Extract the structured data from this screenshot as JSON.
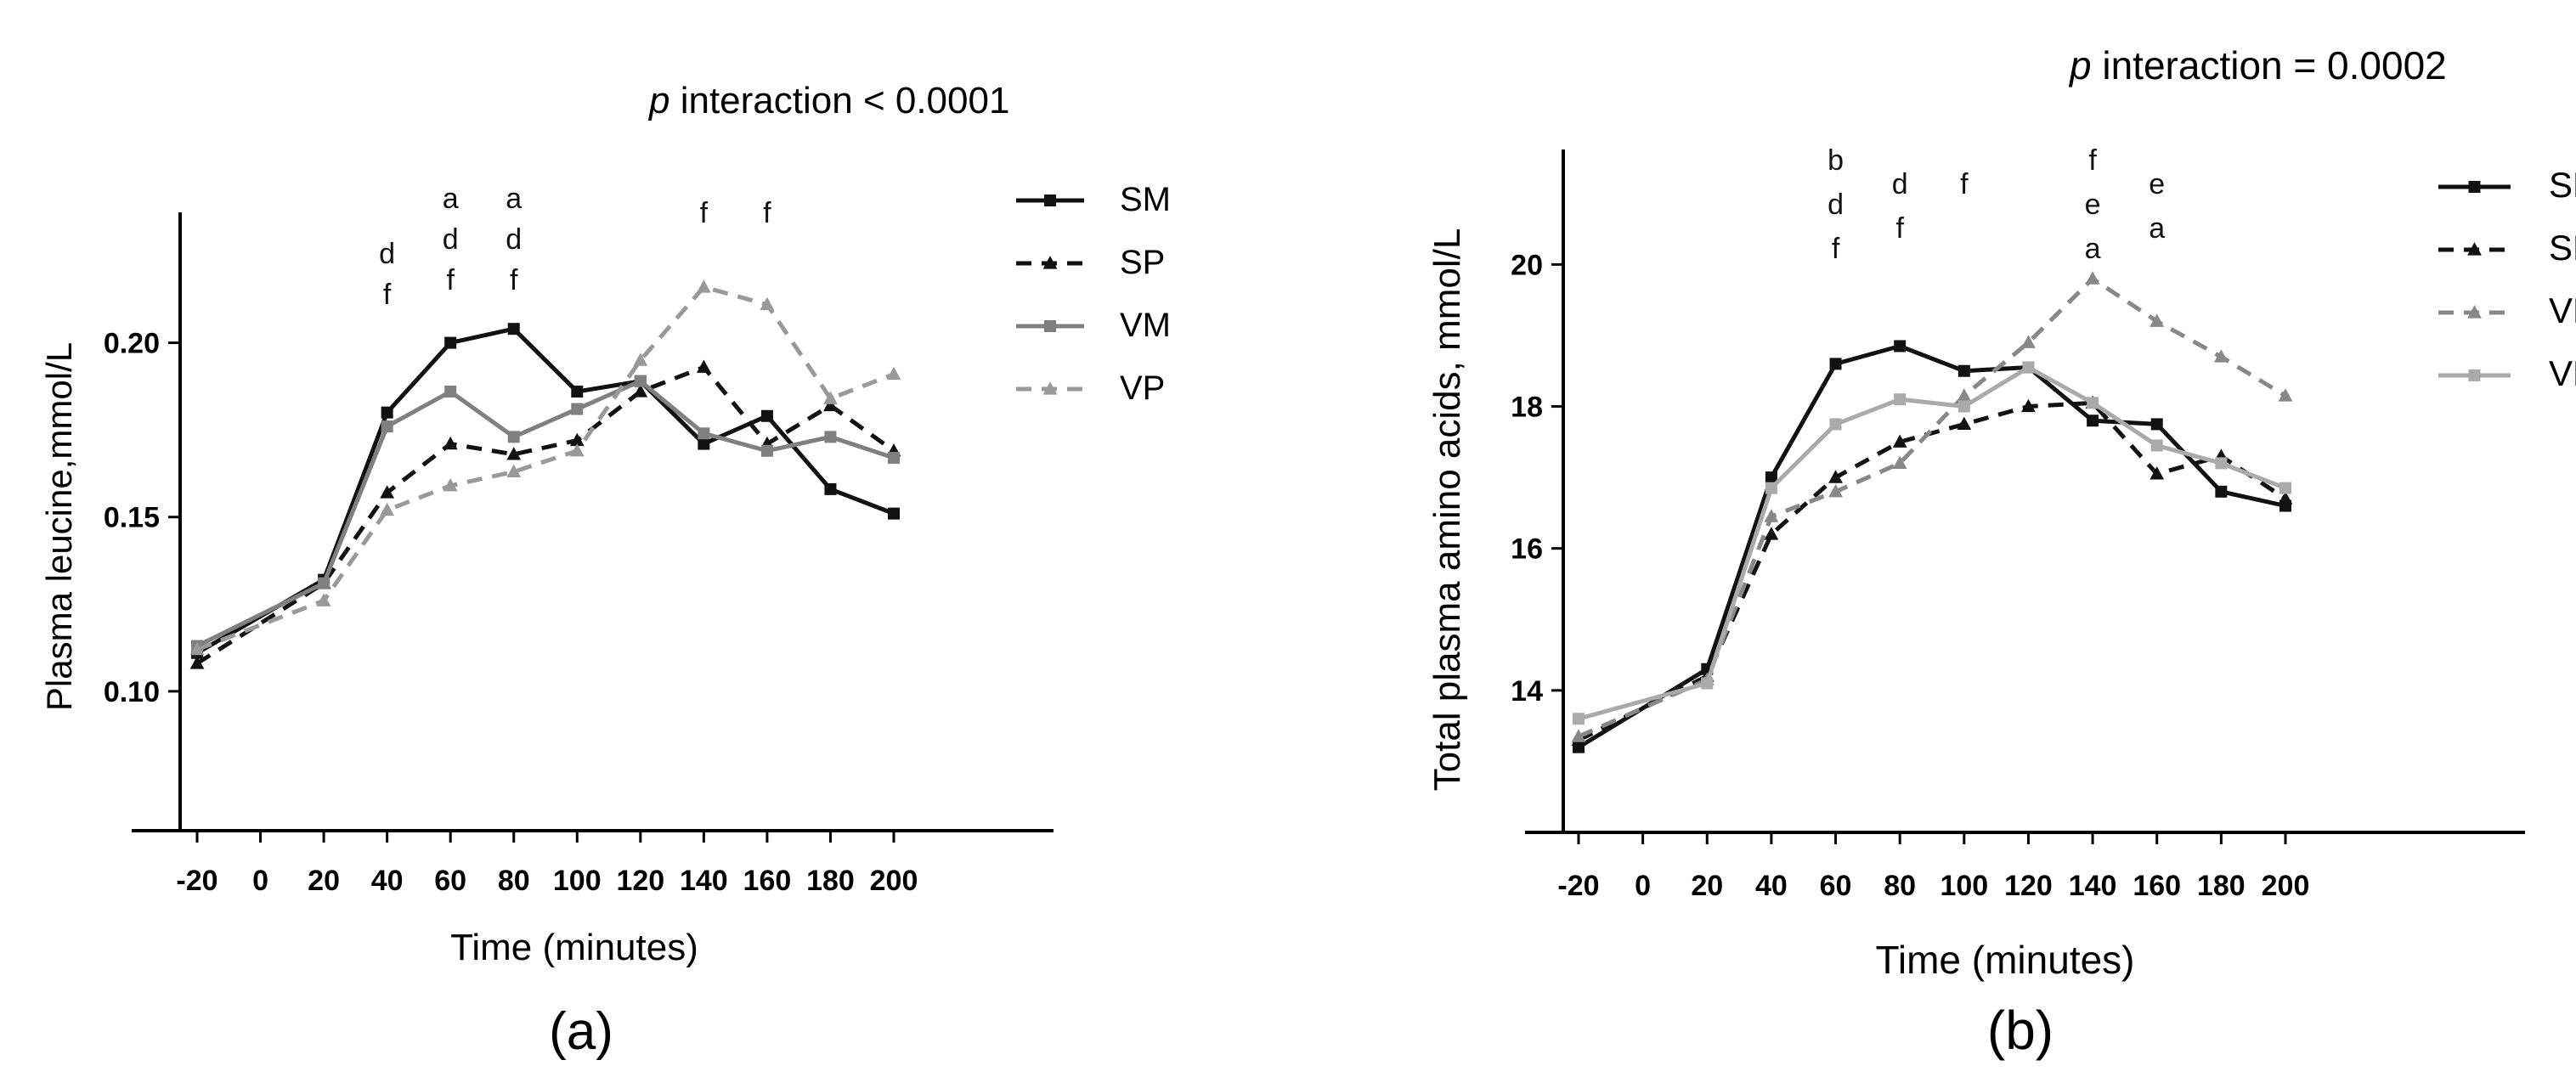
{
  "chart_data": [
    {
      "type": "line",
      "panel_label": "(a)",
      "subtitle_italic": "p",
      "subtitle_rest": "interaction",
      "subtitle_stat": "< 0.0001",
      "xlabel": "Time (minutes)",
      "ylabel": "Plasma leucine,mmol/L",
      "x": [
        -20,
        20,
        40,
        60,
        80,
        100,
        120,
        140,
        160,
        180,
        200
      ],
      "xticks": [
        "-20",
        "0",
        "20",
        "40",
        "60",
        "80",
        "100",
        "120",
        "140",
        "160",
        "180",
        "200"
      ],
      "yticks": [
        "0.10",
        "0.15",
        "0.20"
      ],
      "xlim": [
        -25,
        245
      ],
      "ylim": [
        0.06,
        0.235
      ],
      "series": [
        {
          "name": "SM",
          "color": "#111111",
          "dash": "solid",
          "marker": "square",
          "values": [
            0.111,
            0.132,
            0.18,
            0.2,
            0.204,
            0.186,
            0.189,
            0.171,
            0.179,
            0.158,
            0.151
          ]
        },
        {
          "name": "SP",
          "color": "#111111",
          "dash": "dashed",
          "marker": "triangle",
          "values": [
            0.108,
            0.131,
            0.157,
            0.171,
            0.168,
            0.172,
            0.186,
            0.193,
            0.171,
            0.182,
            0.169
          ]
        },
        {
          "name": "VM",
          "color": "#808080",
          "dash": "solid",
          "marker": "square",
          "values": [
            0.113,
            0.131,
            0.176,
            0.186,
            0.173,
            0.181,
            0.189,
            0.174,
            0.169,
            0.173,
            0.167
          ]
        },
        {
          "name": "VP",
          "color": "#999999",
          "dash": "dashed",
          "marker": "triangle",
          "values": [
            0.112,
            0.126,
            0.152,
            0.159,
            0.163,
            0.169,
            0.195,
            0.216,
            0.211,
            0.184,
            0.191
          ]
        }
      ],
      "annotations": [
        {
          "x": 40,
          "lines": [
            "d",
            "f"
          ]
        },
        {
          "x": 60,
          "lines": [
            "a",
            "d",
            "f"
          ]
        },
        {
          "x": 80,
          "lines": [
            "a",
            "d",
            "f"
          ]
        },
        {
          "x": 140,
          "lines": [
            "f"
          ]
        },
        {
          "x": 160,
          "lines": [
            "f"
          ]
        }
      ],
      "legend_order": [
        "SM",
        "SP",
        "VM",
        "VP"
      ]
    },
    {
      "type": "line",
      "panel_label": "(b)",
      "subtitle_italic": "p",
      "subtitle_rest": "interaction",
      "subtitle_stat": "= 0.0002",
      "xlabel": "Time (minutes)",
      "ylabel": "Total plasma amino acids, mmol/L",
      "x": [
        -20,
        0,
        20,
        40,
        60,
        80,
        100,
        120,
        140,
        160,
        180,
        200
      ],
      "xticks": [
        "-20",
        "0",
        "20",
        "40",
        "60",
        "80",
        "100",
        "120",
        "140",
        "160",
        "180",
        "200"
      ],
      "yticks": [
        "14",
        "16",
        "18",
        "20"
      ],
      "xlim": [
        -25,
        245
      ],
      "ylim": [
        12,
        21.5
      ],
      "series": [
        {
          "name": "SM",
          "color": "#111111",
          "dash": "solid",
          "marker": "square",
          "values": [
            13.2,
            null,
            14.3,
            17.0,
            18.6,
            18.85,
            18.5,
            18.55,
            17.8,
            17.75,
            16.8,
            16.6
          ]
        },
        {
          "name": "SP",
          "color": "#111111",
          "dash": "dashed",
          "marker": "triangle",
          "values": [
            13.3,
            null,
            14.2,
            16.2,
            17.0,
            17.5,
            17.75,
            18.0,
            18.05,
            17.05,
            17.3,
            16.7
          ]
        },
        {
          "name": "VP",
          "color": "#888888",
          "dash": "dashed",
          "marker": "triangle",
          "values": [
            13.35,
            null,
            14.15,
            16.45,
            16.8,
            17.2,
            18.15,
            18.9,
            19.8,
            19.2,
            18.7,
            18.15
          ]
        },
        {
          "name": "VM",
          "color": "#aaaaaa",
          "dash": "solid",
          "marker": "square",
          "values": [
            13.6,
            null,
            14.1,
            16.85,
            17.75,
            18.1,
            18.0,
            18.55,
            18.05,
            17.45,
            17.2,
            16.85
          ]
        }
      ],
      "annotations": [
        {
          "x": 60,
          "lines": [
            "b",
            "d",
            "f"
          ]
        },
        {
          "x": 80,
          "lines": [
            "d",
            "f"
          ]
        },
        {
          "x": 100,
          "lines": [
            "f"
          ]
        },
        {
          "x": 140,
          "lines": [
            "f",
            "e",
            "a"
          ]
        },
        {
          "x": 160,
          "lines": [
            "e",
            "a"
          ]
        }
      ],
      "legend_order": [
        "SM",
        "SP",
        "VP",
        "VM"
      ]
    }
  ]
}
